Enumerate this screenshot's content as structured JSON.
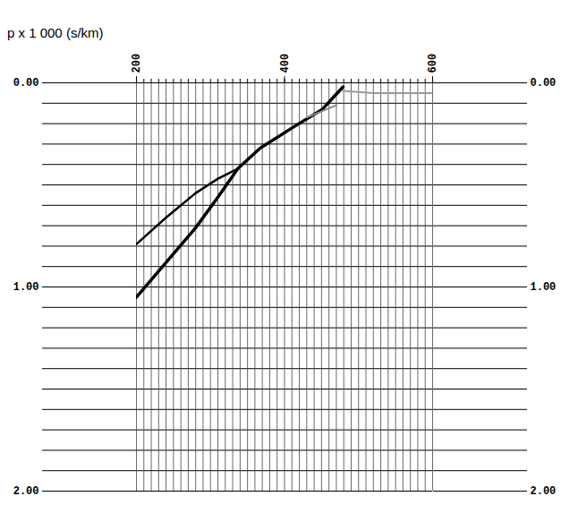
{
  "chart_data": {
    "type": "line",
    "title": "p x 1 000 (s/km)",
    "xlim": [
      200,
      600
    ],
    "xticks": [
      200,
      400,
      600
    ],
    "ylim": [
      0,
      2
    ],
    "yticks": [
      {
        "value": 0,
        "label": "0.00"
      },
      {
        "value": 1,
        "label": "1.00"
      },
      {
        "value": 2,
        "label": "2.00"
      }
    ],
    "grid": true,
    "y_gridlines": [
      0,
      0.1,
      0.2,
      0.3,
      0.4,
      0.5,
      0.6,
      0.7,
      0.8,
      0.9,
      1,
      1.1,
      1.2,
      1.3,
      1.4,
      1.5,
      1.6,
      1.7,
      1.8,
      1.9,
      2
    ],
    "traces": [
      200,
      210,
      220,
      230,
      240,
      250,
      260,
      270,
      280,
      290,
      300,
      310,
      320,
      330,
      340,
      350,
      360,
      370,
      380,
      390,
      400,
      410,
      420,
      430,
      440,
      450,
      460,
      470,
      480,
      490,
      500,
      510,
      520,
      530,
      540,
      550,
      560,
      570,
      580,
      590,
      600
    ],
    "series": [
      {
        "color": "#000000",
        "x": [
          200,
          240,
          280,
          310,
          337,
          367,
          415,
          451,
          479
        ],
        "values": [
          1.05,
          0.88,
          0.71,
          0.56,
          0.42,
          0.32,
          0.21,
          0.13,
          0.02
        ]
      },
      {
        "color": "#000000",
        "x": [
          200,
          240,
          280,
          310,
          337
        ],
        "values": [
          0.79,
          0.66,
          0.54,
          0.47,
          0.42
        ]
      },
      {
        "color": "#888888",
        "x": [
          430,
          450,
          470
        ],
        "values": [
          0.17,
          0.14,
          0.11
        ]
      },
      {
        "color": "#999999",
        "x": [
          479,
          520,
          560,
          600
        ],
        "values": [
          0.04,
          0.05,
          0.05,
          0.05
        ]
      }
    ]
  }
}
